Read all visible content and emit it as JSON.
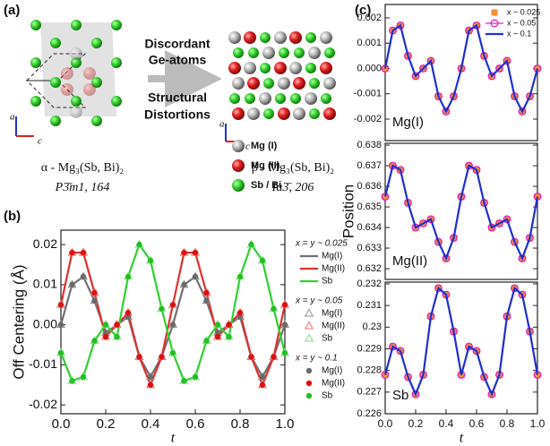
{
  "panel_labels": [
    "(a)",
    "(b)",
    "(c)"
  ],
  "panel_a": {
    "arrow_top": [
      "Discordant",
      "Ge-atoms"
    ],
    "arrow_bottom": [
      "Structural",
      "Distortions"
    ],
    "atom_legend": [
      "Mg (I)",
      "Mg (II)",
      "Sb / Bi"
    ],
    "alpha_formula": "α - Mg₃(Sb, Bi)₂",
    "alpha_group": "P3̄m1, 164",
    "beta_formula": "β - Mg₃(Sb, Bi)₂",
    "beta_group": "Ia3̄, 206",
    "axis_labels": [
      "a",
      "c"
    ]
  },
  "chart_data": [
    {
      "type": "line",
      "ylabel": "Off Centering (Å)",
      "xlabel": "t",
      "legend": "right",
      "legend_titles": [
        "x = y ~ 0.025",
        "x = y ~ 0.05",
        "x = y ~ 0.1"
      ],
      "xlim": [
        0,
        1
      ],
      "ylim": [
        -0.0222,
        0.0236
      ],
      "xticks": [
        {
          "value": 0,
          "label": "0.0"
        },
        0.2,
        0.4,
        0.6,
        0.8,
        {
          "value": 1,
          "label": "1.0"
        }
      ],
      "yticks": [
        -0.02,
        -0.01,
        {
          "value": 0,
          "label": "0.00"
        },
        0.01,
        0.02
      ],
      "x": [
        0,
        0.05,
        0.1,
        0.15,
        0.2,
        0.25,
        0.3,
        0.35,
        0.4,
        0.45,
        0.5,
        0.55,
        0.6,
        0.65,
        0.7,
        0.75,
        0.8,
        0.85,
        0.9,
        0.95,
        1
      ],
      "series": [
        {
          "name": "Mg(I)",
          "color": "#707070",
          "marker": "none",
          "line": true,
          "values": [
            0,
            0.01,
            0.012,
            0.006,
            -0.002,
            0,
            0.002,
            -0.008,
            -0.013,
            -0.008,
            0,
            0.01,
            0.012,
            0.006,
            -0.002,
            0,
            0.002,
            -0.008,
            -0.013,
            -0.008,
            0
          ]
        },
        {
          "name": "Mg(II)",
          "color": "#e03030",
          "marker": "none",
          "line": true,
          "values": [
            0.005,
            0.018,
            0.018,
            0.008,
            -0.003,
            0,
            0.003,
            -0.008,
            -0.015,
            -0.008,
            0.005,
            0.018,
            0.018,
            0.008,
            -0.003,
            0,
            0.003,
            -0.008,
            -0.015,
            -0.008,
            0.005
          ]
        },
        {
          "name": "Sb",
          "color": "#30d030",
          "marker": "none",
          "line": true,
          "values": [
            -0.007,
            -0.014,
            -0.013,
            -0.004,
            0,
            -0.003,
            0.012,
            0.02,
            0.016,
            0.004,
            -0.007,
            -0.014,
            -0.013,
            -0.004,
            0,
            -0.003,
            0.012,
            0.02,
            0.016,
            0.004,
            -0.007
          ]
        },
        {
          "name": "Mg(I)",
          "color": "#909090",
          "marker": "open-triangle",
          "line": false,
          "values": [
            0,
            0.01,
            0.012,
            0.006,
            -0.002,
            0,
            0.002,
            -0.008,
            -0.013,
            -0.008,
            0,
            0.01,
            0.012,
            0.006,
            -0.002,
            0,
            0.002,
            -0.008,
            -0.013,
            -0.008,
            0
          ]
        },
        {
          "name": "Mg(II)",
          "color": "#f07070",
          "marker": "open-triangle",
          "line": false,
          "values": [
            0.005,
            0.018,
            0.018,
            0.008,
            -0.003,
            0,
            0.003,
            -0.008,
            -0.015,
            -0.008,
            0.005,
            0.018,
            0.018,
            0.008,
            -0.003,
            0,
            0.003,
            -0.008,
            -0.015,
            -0.008,
            0.005
          ]
        },
        {
          "name": "Sb",
          "color": "#80e080",
          "marker": "open-triangle",
          "line": false,
          "values": [
            -0.007,
            -0.014,
            -0.013,
            -0.004,
            0,
            -0.003,
            0.012,
            0.02,
            0.016,
            0.004,
            -0.007,
            -0.014,
            -0.013,
            -0.004,
            0,
            -0.003,
            0.012,
            0.02,
            0.016,
            0.004,
            -0.007
          ]
        },
        {
          "name": "Mg(I)",
          "color": "#6a6a6a",
          "marker": "circle",
          "line": false,
          "values": [
            0,
            0.01,
            0.012,
            0.006,
            -0.002,
            0,
            0.002,
            -0.008,
            -0.013,
            -0.008,
            0,
            0.01,
            0.012,
            0.006,
            -0.002,
            0,
            0.002,
            -0.008,
            -0.013,
            -0.008,
            0
          ]
        },
        {
          "name": "Mg(II)",
          "color": "#e01010",
          "marker": "circle",
          "line": false,
          "values": [
            0.005,
            0.018,
            0.018,
            0.008,
            -0.003,
            0,
            0.003,
            -0.008,
            -0.015,
            -0.008,
            0.005,
            0.018,
            0.018,
            0.008,
            -0.003,
            0,
            0.003,
            -0.008,
            -0.015,
            -0.008,
            0.005
          ]
        },
        {
          "name": "Sb",
          "color": "#22c022",
          "marker": "circle",
          "line": false,
          "values": [
            -0.007,
            -0.014,
            -0.013,
            -0.004,
            0,
            -0.003,
            0.012,
            0.02,
            0.016,
            0.004,
            -0.007,
            -0.014,
            -0.013,
            -0.004,
            0,
            -0.003,
            0.012,
            0.02,
            0.016,
            0.004,
            -0.007
          ]
        }
      ]
    },
    {
      "type": "line",
      "annotation": "Mg(I)",
      "legend": "upper right",
      "xlim": [
        0,
        1
      ],
      "ylim": [
        -0.00285,
        0.00253
      ],
      "yticks": [
        -0.002,
        -0.001,
        {
          "value": 0,
          "label": "0.000"
        },
        0.001,
        0.002
      ],
      "x": [
        0,
        0.05,
        0.1,
        0.15,
        0.2,
        0.25,
        0.3,
        0.35,
        0.4,
        0.45,
        0.5,
        0.55,
        0.6,
        0.65,
        0.7,
        0.75,
        0.8,
        0.85,
        0.9,
        0.95,
        1
      ],
      "series": [
        {
          "name": "x ~ 0.025",
          "color": "#f39030",
          "marker": "square",
          "line": false,
          "values": [
            0,
            0.0015,
            0.0017,
            0.0005,
            -0.0003,
            0,
            0.0003,
            -0.0011,
            -0.0017,
            -0.0011,
            0,
            0.0015,
            0.0017,
            0.0005,
            -0.0003,
            0,
            0.0003,
            -0.0011,
            -0.0017,
            -0.0011,
            0
          ]
        },
        {
          "name": "x ~ 0.05",
          "color": "#e020c0",
          "marker": "open-circle",
          "line": true,
          "values": [
            0,
            0.0015,
            0.0017,
            0.0005,
            -0.0003,
            0,
            0.0003,
            -0.0011,
            -0.0017,
            -0.0011,
            0,
            0.0015,
            0.0017,
            0.0005,
            -0.0003,
            0,
            0.0003,
            -0.0011,
            -0.0017,
            -0.0011,
            0
          ]
        },
        {
          "name": "x ~ 0.1",
          "color": "#1f2fd0",
          "marker": "none",
          "line": true,
          "values": [
            0,
            0.0015,
            0.0017,
            0.0005,
            -0.0003,
            0,
            0.0003,
            -0.0011,
            -0.0017,
            -0.0011,
            0,
            0.0015,
            0.0017,
            0.0005,
            -0.0003,
            0,
            0.0003,
            -0.0011,
            -0.0017,
            -0.0011,
            0
          ]
        }
      ]
    },
    {
      "type": "line",
      "annotation": "Mg(II)",
      "ylabel": "Position",
      "xlim": [
        0,
        1
      ],
      "ylim": [
        0.63148,
        0.63809
      ],
      "yticks": [
        0.632,
        0.633,
        0.634,
        0.635,
        0.636,
        0.637,
        0.638
      ],
      "x": [
        0,
        0.05,
        0.1,
        0.15,
        0.2,
        0.25,
        0.3,
        0.35,
        0.4,
        0.45,
        0.5,
        0.55,
        0.6,
        0.65,
        0.7,
        0.75,
        0.8,
        0.85,
        0.9,
        0.95,
        1
      ],
      "series": [
        {
          "name": "x ~ 0.025",
          "color": "#f39030",
          "marker": "square",
          "line": false,
          "values": [
            0.6355,
            0.637,
            0.6368,
            0.6352,
            0.634,
            0.6342,
            0.6344,
            0.6333,
            0.6325,
            0.6335,
            0.6355,
            0.637,
            0.6368,
            0.6352,
            0.634,
            0.6342,
            0.6344,
            0.6333,
            0.6325,
            0.6335,
            0.6355
          ]
        },
        {
          "name": "x ~ 0.05",
          "color": "#e020c0",
          "marker": "open-circle",
          "line": true,
          "values": [
            0.6355,
            0.637,
            0.6368,
            0.6352,
            0.634,
            0.6342,
            0.6344,
            0.6333,
            0.6325,
            0.6335,
            0.6355,
            0.637,
            0.6368,
            0.6352,
            0.634,
            0.6342,
            0.6344,
            0.6333,
            0.6325,
            0.6335,
            0.6355
          ]
        },
        {
          "name": "x ~ 0.1",
          "color": "#1f2fd0",
          "marker": "none",
          "line": true,
          "values": [
            0.6355,
            0.637,
            0.6368,
            0.6352,
            0.634,
            0.6342,
            0.6344,
            0.6333,
            0.6325,
            0.6335,
            0.6355,
            0.637,
            0.6368,
            0.6352,
            0.634,
            0.6342,
            0.6344,
            0.6333,
            0.6325,
            0.6335,
            0.6355
          ]
        }
      ]
    },
    {
      "type": "line",
      "annotation": "Sb",
      "xlabel": "t",
      "xlim": [
        0,
        1
      ],
      "ylim": [
        0.226,
        0.23208
      ],
      "xticks": [
        {
          "value": 0,
          "label": "0.0"
        },
        0.2,
        0.4,
        0.6,
        0.8,
        {
          "value": 1,
          "label": "1.0"
        }
      ],
      "yticks": [
        0.226,
        0.227,
        0.228,
        0.229,
        0.23,
        0.231,
        0.232
      ],
      "x": [
        0,
        0.05,
        0.1,
        0.15,
        0.2,
        0.25,
        0.3,
        0.35,
        0.4,
        0.45,
        0.5,
        0.55,
        0.6,
        0.65,
        0.7,
        0.75,
        0.8,
        0.85,
        0.9,
        0.95,
        1
      ],
      "series": [
        {
          "name": "x ~ 0.025",
          "color": "#f39030",
          "marker": "square",
          "line": false,
          "values": [
            0.2278,
            0.2291,
            0.2289,
            0.2277,
            0.2269,
            0.2278,
            0.2305,
            0.2318,
            0.2315,
            0.2298,
            0.2278,
            0.2291,
            0.2289,
            0.2277,
            0.2269,
            0.2278,
            0.2305,
            0.2318,
            0.2315,
            0.2298,
            0.2278
          ]
        },
        {
          "name": "x ~ 0.05",
          "color": "#e020c0",
          "marker": "open-circle",
          "line": true,
          "values": [
            0.2278,
            0.2291,
            0.2289,
            0.2277,
            0.2269,
            0.2278,
            0.2305,
            0.2318,
            0.2315,
            0.2298,
            0.2278,
            0.2291,
            0.2289,
            0.2277,
            0.2269,
            0.2278,
            0.2305,
            0.2318,
            0.2315,
            0.2298,
            0.2278
          ]
        },
        {
          "name": "x ~ 0.1",
          "color": "#1f2fd0",
          "marker": "none",
          "line": true,
          "values": [
            0.2278,
            0.2291,
            0.2289,
            0.2277,
            0.2269,
            0.2278,
            0.2305,
            0.2318,
            0.2315,
            0.2298,
            0.2278,
            0.2291,
            0.2289,
            0.2277,
            0.2269,
            0.2278,
            0.2305,
            0.2318,
            0.2315,
            0.2298,
            0.2278
          ]
        }
      ]
    }
  ]
}
